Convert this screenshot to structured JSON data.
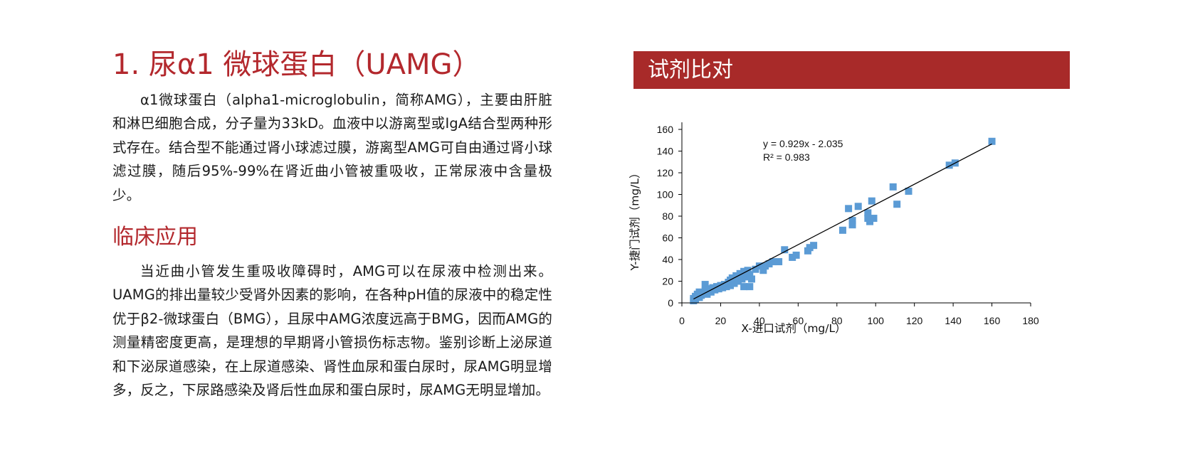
{
  "left": {
    "title": "1. 尿α1 微球蛋白（UAMG）",
    "intro": "α1微球蛋白（alpha1-microglobulin，简称AMG），主要由肝脏和淋巴细胞合成，分子量为33kD。血液中以游离型或IgA结合型两种形式存在。结合型不能通过肾小球滤过膜，游离型AMG可自由通过肾小球滤过膜，随后95%-99%在肾近曲小管被重吸收，正常尿液中含量极少。",
    "section_title": "临床应用",
    "clinical": "当近曲小管发生重吸收障碍时，AMG可以在尿液中检测出来。UAMG的排出量较少受肾外因素的影响，在各种pH值的尿液中的稳定性优于β2-微球蛋白（BMG），且尿中AMG浓度远高于BMG，因而AMG的测量精密度更高，是理想的早期肾小管损伤标志物。鉴别诊断上泌尿道和下泌尿道感染，在上尿道感染、肾性血尿和蛋白尿时，尿AMG明显增多，反之，下尿路感染及肾后性血尿和蛋白尿时，尿AMG无明显增加。"
  },
  "banner": {
    "title": "试剂比对"
  },
  "chart_data": {
    "type": "scatter",
    "xlabel": "X-进口试剂（mg/L）",
    "ylabel": "Y-捷门试剂（mg/L）",
    "xlim": [
      0,
      180
    ],
    "ylim": [
      0,
      160
    ],
    "xticks": [
      "0",
      "20",
      "40",
      "60",
      "80",
      "100",
      "120",
      "140",
      "160",
      "180"
    ],
    "yticks": [
      "0",
      "20",
      "40",
      "60",
      "80",
      "100",
      "120",
      "140",
      "160"
    ],
    "equation": "y = 0.929x - 2.035",
    "r2": "R² = 0.983",
    "trendline": {
      "slope": 0.929,
      "intercept": -2.035,
      "x_range": [
        6,
        160
      ]
    },
    "marker_color": "#5b9bd5",
    "line_color": "#000000",
    "points": [
      [
        6,
        2
      ],
      [
        6,
        4
      ],
      [
        7,
        6
      ],
      [
        7,
        3
      ],
      [
        8,
        8
      ],
      [
        9,
        10
      ],
      [
        9,
        5
      ],
      [
        10,
        7
      ],
      [
        11,
        9
      ],
      [
        12,
        11
      ],
      [
        12,
        17
      ],
      [
        13,
        13
      ],
      [
        13,
        8
      ],
      [
        14,
        12
      ],
      [
        15,
        10
      ],
      [
        16,
        14
      ],
      [
        17,
        12
      ],
      [
        18,
        15
      ],
      [
        19,
        13
      ],
      [
        20,
        16
      ],
      [
        21,
        14
      ],
      [
        22,
        17
      ],
      [
        23,
        15
      ],
      [
        24,
        19
      ],
      [
        25,
        21
      ],
      [
        25,
        16
      ],
      [
        26,
        23
      ],
      [
        27,
        18
      ],
      [
        28,
        25
      ],
      [
        29,
        20
      ],
      [
        30,
        27
      ],
      [
        31,
        22
      ],
      [
        32,
        29
      ],
      [
        32,
        15
      ],
      [
        33,
        24
      ],
      [
        34,
        30
      ],
      [
        35,
        26
      ],
      [
        35,
        15
      ],
      [
        36,
        22
      ],
      [
        38,
        31
      ],
      [
        40,
        34
      ],
      [
        42,
        30
      ],
      [
        43,
        34
      ],
      [
        45,
        36
      ],
      [
        47,
        38
      ],
      [
        50,
        38
      ],
      [
        53,
        49
      ],
      [
        57,
        42
      ],
      [
        59,
        44
      ],
      [
        65,
        48
      ],
      [
        66,
        51
      ],
      [
        68,
        53
      ],
      [
        83,
        67
      ],
      [
        86,
        87
      ],
      [
        88,
        76
      ],
      [
        88,
        72
      ],
      [
        91,
        89
      ],
      [
        96,
        83
      ],
      [
        96,
        78
      ],
      [
        97,
        75
      ],
      [
        98,
        94
      ],
      [
        99,
        78
      ],
      [
        109,
        107
      ],
      [
        111,
        91
      ],
      [
        117,
        103
      ],
      [
        138,
        127
      ],
      [
        141,
        129
      ],
      [
        160,
        149
      ]
    ]
  }
}
